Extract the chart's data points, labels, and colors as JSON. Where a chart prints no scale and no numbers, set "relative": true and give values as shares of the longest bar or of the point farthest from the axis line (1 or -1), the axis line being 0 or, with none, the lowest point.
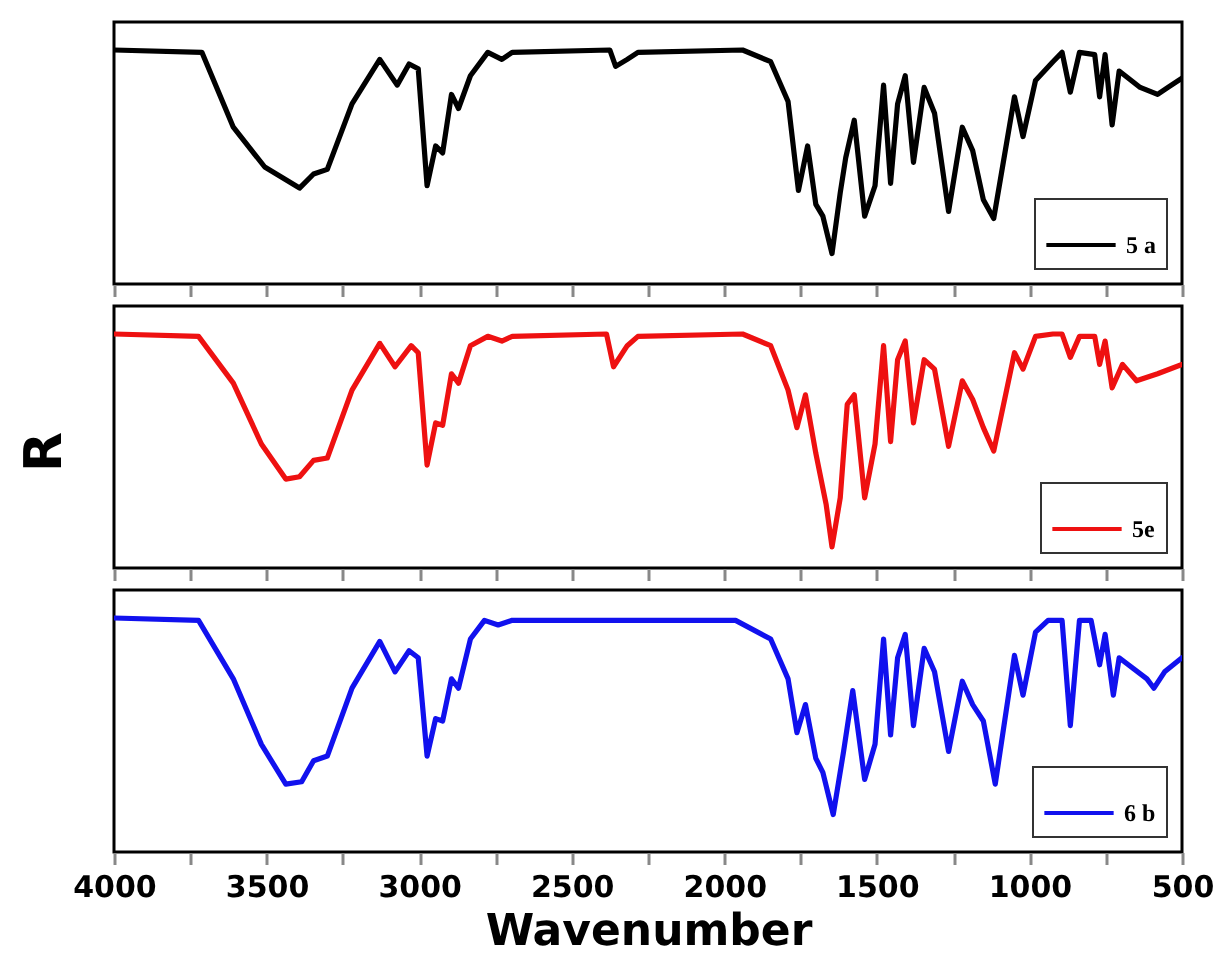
{
  "chart_data": [
    {
      "type": "line",
      "relative": true,
      "xlim": [
        4000,
        500
      ],
      "xticks": [
        4000,
        {
          "value": 3750,
          "label": null
        },
        3500,
        {
          "value": 3250,
          "label": null
        },
        3000,
        {
          "value": 2750,
          "label": null
        },
        2500,
        {
          "value": 2250,
          "label": null
        },
        2000,
        {
          "value": 1750,
          "label": null
        },
        1500,
        {
          "value": 1250,
          "label": null
        },
        1000,
        {
          "value": 750,
          "label": null
        },
        500
      ],
      "tick_labels": false,
      "legend": "bottom right",
      "x": [
        4000,
        3712,
        3609,
        3506,
        3392,
        3346,
        3301,
        3220,
        3129,
        3072,
        3033,
        3003,
        2974,
        2946,
        2923,
        2894,
        2871,
        2832,
        2775,
        2729,
        2695,
        2375,
        2356,
        2318,
        2283,
        1940,
        1848,
        1791,
        1757,
        1727,
        1700,
        1677,
        1647,
        1620,
        1602,
        1574,
        1540,
        1506,
        1478,
        1455,
        1432,
        1407,
        1380,
        1345,
        1311,
        1265,
        1220,
        1186,
        1151,
        1117,
        1049,
        1021,
        980,
        923,
        893,
        866,
        836,
        786,
        770,
        752,
        729,
        706,
        637,
        580,
        546,
        500
      ],
      "series": [
        {
          "name": "5 a",
          "color": "#000000",
          "values": [
            1.0,
            0.99,
            0.67,
            0.5,
            0.41,
            0.47,
            0.49,
            0.77,
            0.96,
            0.85,
            0.94,
            0.92,
            0.42,
            0.59,
            0.56,
            0.81,
            0.75,
            0.89,
            0.99,
            0.96,
            0.99,
            1.0,
            0.93,
            0.96,
            0.99,
            1.0,
            0.95,
            0.78,
            0.4,
            0.59,
            0.34,
            0.29,
            0.13,
            0.39,
            0.54,
            0.7,
            0.29,
            0.42,
            0.85,
            0.43,
            0.77,
            0.89,
            0.52,
            0.84,
            0.73,
            0.31,
            0.67,
            0.57,
            0.36,
            0.28,
            0.8,
            0.63,
            0.87,
            0.95,
            0.99,
            0.82,
            0.99,
            0.98,
            0.8,
            0.98,
            0.68,
            0.91,
            0.84,
            0.81,
            0.84,
            0.88
          ]
        }
      ]
    },
    {
      "type": "line",
      "relative": true,
      "ylabel": "R",
      "xlim": [
        4000,
        500
      ],
      "xticks": [
        4000,
        {
          "value": 3750,
          "label": null
        },
        3500,
        {
          "value": 3250,
          "label": null
        },
        3000,
        {
          "value": 2750,
          "label": null
        },
        2500,
        {
          "value": 2250,
          "label": null
        },
        2000,
        {
          "value": 1750,
          "label": null
        },
        1500,
        {
          "value": 1250,
          "label": null
        },
        1000,
        {
          "value": 750,
          "label": null
        },
        500
      ],
      "tick_labels": false,
      "legend": "bottom right",
      "x": [
        4000,
        3723,
        3609,
        3517,
        3437,
        3392,
        3346,
        3301,
        3220,
        3129,
        3079,
        3026,
        3003,
        2974,
        2946,
        2923,
        2894,
        2871,
        2832,
        2775,
        2729,
        2695,
        2386,
        2363,
        2318,
        2283,
        1940,
        1848,
        1791,
        1762,
        1734,
        1700,
        1666,
        1647,
        1620,
        1597,
        1574,
        1540,
        1506,
        1478,
        1455,
        1432,
        1407,
        1380,
        1345,
        1311,
        1265,
        1220,
        1186,
        1151,
        1117,
        1049,
        1021,
        980,
        923,
        893,
        866,
        836,
        786,
        770,
        752,
        729,
        695,
        649,
        580,
        500
      ],
      "series": [
        {
          "name": "5e",
          "color": "#ee1111",
          "values": [
            1.0,
            0.99,
            0.79,
            0.53,
            0.38,
            0.39,
            0.46,
            0.47,
            0.76,
            0.96,
            0.86,
            0.95,
            0.92,
            0.44,
            0.62,
            0.61,
            0.83,
            0.79,
            0.95,
            0.99,
            0.97,
            0.99,
            1.0,
            0.86,
            0.95,
            0.99,
            1.0,
            0.95,
            0.76,
            0.6,
            0.74,
            0.49,
            0.27,
            0.09,
            0.3,
            0.7,
            0.74,
            0.3,
            0.53,
            0.95,
            0.54,
            0.89,
            0.97,
            0.62,
            0.89,
            0.85,
            0.52,
            0.8,
            0.72,
            0.6,
            0.5,
            0.92,
            0.85,
            0.99,
            1.0,
            1.0,
            0.9,
            0.99,
            0.99,
            0.87,
            0.97,
            0.77,
            0.87,
            0.8,
            0.83,
            0.87
          ]
        }
      ]
    },
    {
      "type": "line",
      "relative": true,
      "xlabel": "Wavenumber",
      "xlim": [
        4000,
        500
      ],
      "xticks": [
        4000,
        {
          "value": 3750,
          "label": null
        },
        3500,
        {
          "value": 3250,
          "label": null
        },
        3000,
        {
          "value": 2750,
          "label": null
        },
        2500,
        {
          "value": 2250,
          "label": null
        },
        2000,
        {
          "value": 1750,
          "label": null
        },
        1500,
        {
          "value": 1250,
          "label": null
        },
        1000,
        {
          "value": 750,
          "label": null
        },
        500
      ],
      "tick_labels": "x",
      "legend": "bottom right",
      "x": [
        4000,
        3723,
        3609,
        3517,
        3437,
        3385,
        3346,
        3301,
        3220,
        3129,
        3079,
        3033,
        3003,
        2974,
        2946,
        2923,
        2894,
        2871,
        2832,
        2786,
        2741,
        2695,
        1963,
        1848,
        1791,
        1762,
        1734,
        1700,
        1677,
        1643,
        1609,
        1579,
        1540,
        1506,
        1478,
        1455,
        1432,
        1407,
        1380,
        1345,
        1311,
        1265,
        1220,
        1186,
        1151,
        1112,
        1049,
        1021,
        980,
        939,
        893,
        866,
        836,
        798,
        770,
        752,
        725,
        706,
        615,
        592,
        557,
        500
      ],
      "series": [
        {
          "name": "6 b",
          "color": "#1111ee",
          "values": [
            1.0,
            0.99,
            0.74,
            0.46,
            0.29,
            0.3,
            0.39,
            0.41,
            0.7,
            0.9,
            0.77,
            0.86,
            0.83,
            0.41,
            0.57,
            0.56,
            0.74,
            0.7,
            0.91,
            0.99,
            0.97,
            0.99,
            0.99,
            0.91,
            0.74,
            0.51,
            0.63,
            0.4,
            0.34,
            0.16,
            0.43,
            0.69,
            0.31,
            0.46,
            0.91,
            0.5,
            0.83,
            0.93,
            0.54,
            0.87,
            0.77,
            0.43,
            0.73,
            0.63,
            0.56,
            0.29,
            0.84,
            0.67,
            0.94,
            0.99,
            0.99,
            0.54,
            0.99,
            0.99,
            0.8,
            0.93,
            0.67,
            0.83,
            0.74,
            0.7,
            0.77,
            0.83
          ]
        }
      ]
    }
  ]
}
